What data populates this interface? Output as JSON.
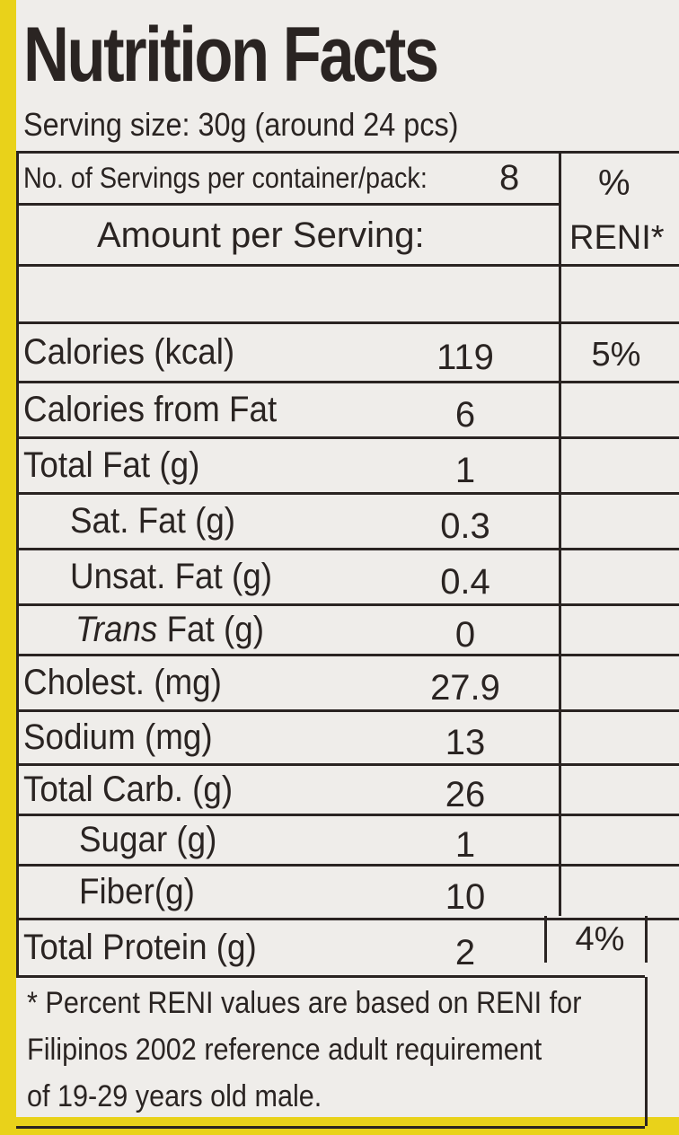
{
  "title": "Nutrition Facts",
  "serving_size": "Serving size: 30g (around 24 pcs)",
  "servings": {
    "label": "No. of Servings per container/pack:",
    "value": "8"
  },
  "header": {
    "percent": "%",
    "reni": "RENI*",
    "amount": "Amount per Serving:"
  },
  "rows": [
    {
      "label": "Calories (kcal)",
      "amount": "119",
      "reni": "5%"
    },
    {
      "label": "Calories from Fat",
      "amount": "6"
    },
    {
      "label": "Total Fat (g)",
      "amount": "1"
    },
    {
      "label": "Sat. Fat (g)",
      "amount": "0.3"
    },
    {
      "label": "Unsat. Fat (g)",
      "amount": "0.4"
    },
    {
      "label_italic": "Trans",
      "label": "Fat (g)",
      "amount": "0"
    },
    {
      "label": "Cholest. (mg)",
      "amount": "27.9"
    },
    {
      "label": "Sodium (mg)",
      "amount": "13"
    },
    {
      "label": "Total Carb. (g)",
      "amount": "26"
    },
    {
      "label": "Sugar (g)",
      "amount": "1"
    },
    {
      "label": "Fiber(g)",
      "amount": "10"
    },
    {
      "label": "Total Protein (g)",
      "amount": "2",
      "reni": "4%"
    }
  ],
  "footnote": [
    "* Percent RENI values are based on RENI for",
    "Filipinos 2002 reference adult requirement",
    "of 19-29 years old male."
  ]
}
